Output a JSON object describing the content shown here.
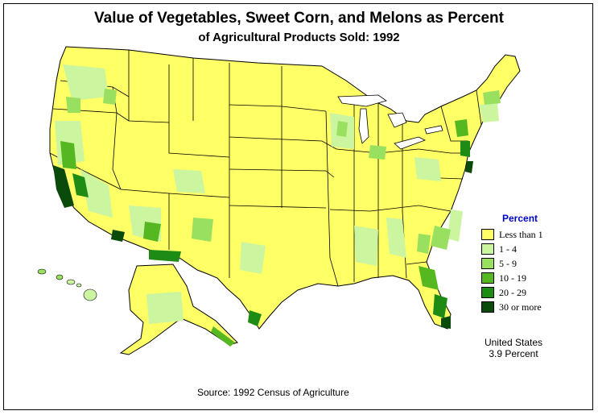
{
  "title": "Value of Vegetables, Sweet Corn, and Melons as Percent",
  "subtitle": "of Agricultural Products Sold:  1992",
  "legend": {
    "title": "Percent",
    "items": [
      {
        "label": "Less than 1",
        "color": "#ffff66"
      },
      {
        "label": "1  -  4",
        "color": "#ccf5a0"
      },
      {
        "label": "5  -  9",
        "color": "#99e060"
      },
      {
        "label": "10  -  19",
        "color": "#55b820"
      },
      {
        "label": "20  -  29",
        "color": "#1e8c14"
      },
      {
        "label": "30  or more",
        "color": "#0a4a0a"
      }
    ]
  },
  "us_summary": {
    "line1": "United States",
    "line2": "3.9 Percent"
  },
  "source": "Source:  1992 Census of Agriculture"
}
